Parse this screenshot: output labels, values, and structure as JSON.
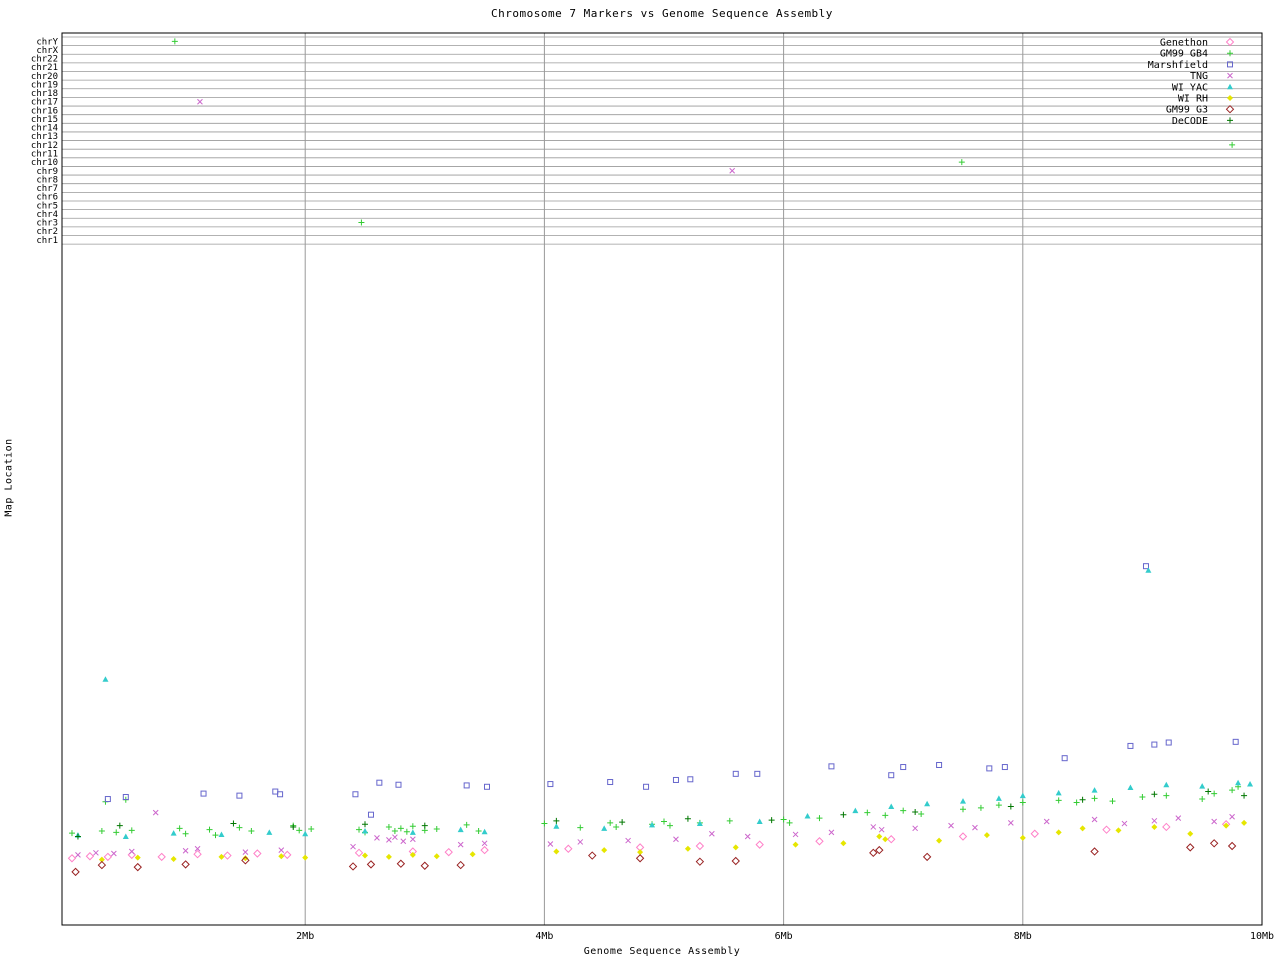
{
  "chart_data": {
    "type": "scatter",
    "title": "Chromosome 7 Markers vs Genome Sequence Assembly",
    "xlabel": "Genome Sequence Assembly",
    "ylabel": "Map Location",
    "xlim": [
      0,
      10
    ],
    "x_ticks": [
      {
        "mb": 2,
        "label": "2Mb"
      },
      {
        "mb": 4,
        "label": "4Mb"
      },
      {
        "mb": 6,
        "label": "6Mb"
      },
      {
        "mb": 8,
        "label": "8Mb"
      },
      {
        "mb": 10,
        "label": "10Mb"
      }
    ],
    "grid": "on",
    "legend_position": "top-right",
    "y_units": "percent of chr7 map band height above bottom axis",
    "chromosomes": [
      "chrY",
      "chrX",
      "chr22",
      "chr21",
      "chr20",
      "chr19",
      "chr18",
      "chr17",
      "chr16",
      "chr15",
      "chr14",
      "chr13",
      "chr12",
      "chr11",
      "chr10",
      "chr9",
      "chr8",
      "chr7",
      "chr6",
      "chr5",
      "chr4",
      "chr3",
      "chr2",
      "chr1"
    ],
    "series": [
      {
        "name": "Genethon",
        "color": "#ff80c8",
        "marker": "diamond-open",
        "points": [
          [
            0.05,
            9.8
          ],
          [
            0.2,
            10.1
          ],
          [
            0.35,
            10.0
          ],
          [
            0.55,
            10.3
          ],
          [
            0.8,
            10.0
          ],
          [
            1.1,
            10.4
          ],
          [
            1.35,
            10.2
          ],
          [
            1.6,
            10.5
          ],
          [
            1.85,
            10.3
          ],
          [
            2.45,
            10.6
          ],
          [
            2.9,
            10.8
          ],
          [
            3.2,
            10.7
          ],
          [
            3.5,
            11.0
          ],
          [
            4.2,
            11.2
          ],
          [
            4.8,
            11.4
          ],
          [
            5.3,
            11.6
          ],
          [
            5.8,
            11.8
          ],
          [
            6.3,
            12.3
          ],
          [
            6.9,
            12.6
          ],
          [
            7.5,
            13.0
          ],
          [
            8.1,
            13.4
          ],
          [
            8.7,
            14.0
          ],
          [
            9.2,
            14.4
          ],
          [
            9.7,
            14.8
          ]
        ]
      },
      {
        "name": "GM99 GB4",
        "color": "#33cc33",
        "marker": "plus",
        "points": [
          [
            0.05,
            13.5
          ],
          [
            0.3,
            13.8
          ],
          [
            0.33,
            18.1
          ],
          [
            0.42,
            13.6
          ],
          [
            0.5,
            18.4
          ],
          [
            0.55,
            13.9
          ],
          [
            0.95,
            14.2
          ],
          [
            1.0,
            13.4
          ],
          [
            1.2,
            14.0
          ],
          [
            1.25,
            13.2
          ],
          [
            1.45,
            14.3
          ],
          [
            1.55,
            13.8
          ],
          [
            1.9,
            14.6
          ],
          [
            1.95,
            13.9
          ],
          [
            2.05,
            14.1
          ],
          [
            2.45,
            14.0
          ],
          [
            2.5,
            13.6
          ],
          [
            2.7,
            14.4
          ],
          [
            2.75,
            13.8
          ],
          [
            2.8,
            14.2
          ],
          [
            2.85,
            13.7
          ],
          [
            2.9,
            14.5
          ],
          [
            3.0,
            13.9
          ],
          [
            3.1,
            14.1
          ],
          [
            3.35,
            14.7
          ],
          [
            3.45,
            13.8
          ],
          [
            4.0,
            14.9
          ],
          [
            4.3,
            14.3
          ],
          [
            4.55,
            15.0
          ],
          [
            4.6,
            14.4
          ],
          [
            4.9,
            14.8
          ],
          [
            5.0,
            15.2
          ],
          [
            5.05,
            14.6
          ],
          [
            5.3,
            15.0
          ],
          [
            5.55,
            15.3
          ],
          [
            6.0,
            15.5
          ],
          [
            6.05,
            15.0
          ],
          [
            6.3,
            15.7
          ],
          [
            6.7,
            16.5
          ],
          [
            6.85,
            16.1
          ],
          [
            7.0,
            16.8
          ],
          [
            7.15,
            16.3
          ],
          [
            7.5,
            17.0
          ],
          [
            7.65,
            17.2
          ],
          [
            7.8,
            17.6
          ],
          [
            8.0,
            18.0
          ],
          [
            8.3,
            18.3
          ],
          [
            8.45,
            18.0
          ],
          [
            8.6,
            18.6
          ],
          [
            8.75,
            18.2
          ],
          [
            9.0,
            18.8
          ],
          [
            9.2,
            19.0
          ],
          [
            9.5,
            18.5
          ],
          [
            9.6,
            19.3
          ],
          [
            9.75,
            19.8
          ],
          [
            9.8,
            20.3
          ]
        ]
      },
      {
        "name": "Marshfield",
        "color": "#6666cc",
        "marker": "square-open",
        "points": [
          [
            0.35,
            18.5
          ],
          [
            0.5,
            18.8
          ],
          [
            1.15,
            19.3
          ],
          [
            1.45,
            19.0
          ],
          [
            1.75,
            19.6
          ],
          [
            1.79,
            19.2
          ],
          [
            2.42,
            19.2
          ],
          [
            2.55,
            16.2
          ],
          [
            2.62,
            20.9
          ],
          [
            2.78,
            20.6
          ],
          [
            3.35,
            20.5
          ],
          [
            3.52,
            20.3
          ],
          [
            4.05,
            20.7
          ],
          [
            4.55,
            21.0
          ],
          [
            4.85,
            20.3
          ],
          [
            5.1,
            21.3
          ],
          [
            5.22,
            21.4
          ],
          [
            5.6,
            22.2
          ],
          [
            5.78,
            22.2
          ],
          [
            6.4,
            23.3
          ],
          [
            6.9,
            22.0
          ],
          [
            7.0,
            23.2
          ],
          [
            7.3,
            23.5
          ],
          [
            7.72,
            23.0
          ],
          [
            7.85,
            23.2
          ],
          [
            8.35,
            24.5
          ],
          [
            8.9,
            26.3
          ],
          [
            9.1,
            26.5
          ],
          [
            9.22,
            26.8
          ],
          [
            9.78,
            26.9
          ],
          [
            9.03,
            52.7
          ]
        ]
      },
      {
        "name": "TNG",
        "color": "#cc66cc",
        "marker": "x",
        "points": [
          [
            0.1,
            10.3
          ],
          [
            0.25,
            10.6
          ],
          [
            0.4,
            10.5
          ],
          [
            0.55,
            10.8
          ],
          [
            0.75,
            16.5
          ],
          [
            1.0,
            10.9
          ],
          [
            1.1,
            11.2
          ],
          [
            1.5,
            10.7
          ],
          [
            1.8,
            11.0
          ],
          [
            2.4,
            11.5
          ],
          [
            2.6,
            12.8
          ],
          [
            2.7,
            12.5
          ],
          [
            2.75,
            12.9
          ],
          [
            2.82,
            12.3
          ],
          [
            2.9,
            12.6
          ],
          [
            3.3,
            11.8
          ],
          [
            3.5,
            12.0
          ],
          [
            4.05,
            11.9
          ],
          [
            4.3,
            12.2
          ],
          [
            4.7,
            12.4
          ],
          [
            5.1,
            12.6
          ],
          [
            5.4,
            13.4
          ],
          [
            5.7,
            13.0
          ],
          [
            6.1,
            13.3
          ],
          [
            6.4,
            13.6
          ],
          [
            6.75,
            14.4
          ],
          [
            6.82,
            14.0
          ],
          [
            7.1,
            14.2
          ],
          [
            7.4,
            14.6
          ],
          [
            7.6,
            14.3
          ],
          [
            7.9,
            15.0
          ],
          [
            8.2,
            15.2
          ],
          [
            8.6,
            15.5
          ],
          [
            8.85,
            14.9
          ],
          [
            9.1,
            15.3
          ],
          [
            9.3,
            15.7
          ],
          [
            9.6,
            15.2
          ],
          [
            9.75,
            15.9
          ]
        ]
      },
      {
        "name": "WI YAC",
        "color": "#33cccc",
        "marker": "triangle-filled",
        "points": [
          [
            0.33,
            36.1
          ],
          [
            0.1,
            13.2
          ],
          [
            0.5,
            13.0
          ],
          [
            0.9,
            13.5
          ],
          [
            1.3,
            13.3
          ],
          [
            1.7,
            13.6
          ],
          [
            2.0,
            13.4
          ],
          [
            2.5,
            13.8
          ],
          [
            2.9,
            13.6
          ],
          [
            3.3,
            14.0
          ],
          [
            3.5,
            13.7
          ],
          [
            4.1,
            14.5
          ],
          [
            4.5,
            14.2
          ],
          [
            4.9,
            14.7
          ],
          [
            5.3,
            14.9
          ],
          [
            5.8,
            15.2
          ],
          [
            6.2,
            16.0
          ],
          [
            6.6,
            16.8
          ],
          [
            6.9,
            17.4
          ],
          [
            7.2,
            17.8
          ],
          [
            7.5,
            18.2
          ],
          [
            7.8,
            18.6
          ],
          [
            8.0,
            19.0
          ],
          [
            8.3,
            19.4
          ],
          [
            8.6,
            19.8
          ],
          [
            8.9,
            20.2
          ],
          [
            9.05,
            52.1
          ],
          [
            9.2,
            20.6
          ],
          [
            9.5,
            20.4
          ],
          [
            9.8,
            20.9
          ],
          [
            9.9,
            20.7
          ]
        ]
      },
      {
        "name": "WI RH",
        "color": "#e6e600",
        "marker": "diamond-filled",
        "points": [
          [
            0.3,
            9.6
          ],
          [
            0.6,
            9.9
          ],
          [
            0.9,
            9.7
          ],
          [
            1.3,
            10.0
          ],
          [
            1.5,
            9.8
          ],
          [
            1.8,
            10.1
          ],
          [
            2.0,
            9.9
          ],
          [
            2.5,
            10.2
          ],
          [
            2.7,
            10.0
          ],
          [
            2.9,
            10.3
          ],
          [
            3.1,
            10.1
          ],
          [
            3.4,
            10.4
          ],
          [
            4.1,
            10.8
          ],
          [
            4.5,
            11.0
          ],
          [
            4.8,
            10.7
          ],
          [
            5.2,
            11.2
          ],
          [
            5.6,
            11.4
          ],
          [
            6.1,
            11.8
          ],
          [
            6.5,
            12.0
          ],
          [
            6.8,
            13.0
          ],
          [
            6.85,
            12.6
          ],
          [
            7.3,
            12.4
          ],
          [
            7.7,
            13.2
          ],
          [
            8.0,
            12.8
          ],
          [
            8.3,
            13.6
          ],
          [
            8.5,
            14.2
          ],
          [
            8.8,
            13.9
          ],
          [
            9.1,
            14.4
          ],
          [
            9.4,
            13.4
          ],
          [
            9.7,
            14.6
          ],
          [
            9.85,
            15.0
          ]
        ]
      },
      {
        "name": "GM99 G3",
        "color": "#992222",
        "marker": "diamond-open",
        "points": [
          [
            0.08,
            7.8
          ],
          [
            0.3,
            8.8
          ],
          [
            0.6,
            8.5
          ],
          [
            1.0,
            8.9
          ],
          [
            1.5,
            9.5
          ],
          [
            2.4,
            8.6
          ],
          [
            2.55,
            8.9
          ],
          [
            2.8,
            9.0
          ],
          [
            3.0,
            8.7
          ],
          [
            3.3,
            8.8
          ],
          [
            4.4,
            10.2
          ],
          [
            4.8,
            9.8
          ],
          [
            5.3,
            9.3
          ],
          [
            5.6,
            9.4
          ],
          [
            6.75,
            10.6
          ],
          [
            6.8,
            11.0
          ],
          [
            7.2,
            10.0
          ],
          [
            8.6,
            10.8
          ],
          [
            9.4,
            11.4
          ],
          [
            9.6,
            12.0
          ],
          [
            9.75,
            11.6
          ]
        ]
      },
      {
        "name": "DeCODE",
        "color": "#007700",
        "marker": "plus",
        "points": [
          [
            0.1,
            13.0
          ],
          [
            0.45,
            14.6
          ],
          [
            1.4,
            14.9
          ],
          [
            1.9,
            14.4
          ],
          [
            2.5,
            14.8
          ],
          [
            3.0,
            14.6
          ],
          [
            4.1,
            15.3
          ],
          [
            4.65,
            15.1
          ],
          [
            5.2,
            15.6
          ],
          [
            5.9,
            15.4
          ],
          [
            6.5,
            16.2
          ],
          [
            7.1,
            16.6
          ],
          [
            7.9,
            17.4
          ],
          [
            8.5,
            18.4
          ],
          [
            9.1,
            19.2
          ],
          [
            9.55,
            19.6
          ],
          [
            9.85,
            19.0
          ]
        ]
      }
    ],
    "off_target_points": [
      {
        "series": "GM99 GB4",
        "chr": "chrY",
        "mb": 0.91
      },
      {
        "series": "TNG",
        "chr": "chr17",
        "mb": 1.12
      },
      {
        "series": "GM99 GB4",
        "chr": "chr3",
        "mb": 2.47
      },
      {
        "series": "TNG",
        "chr": "chr9",
        "mb": 5.57
      },
      {
        "series": "GM99 GB4",
        "chr": "chr10",
        "mb": 7.49
      },
      {
        "series": "GM99 GB4",
        "chr": "chr12",
        "mb": 9.75
      }
    ]
  }
}
